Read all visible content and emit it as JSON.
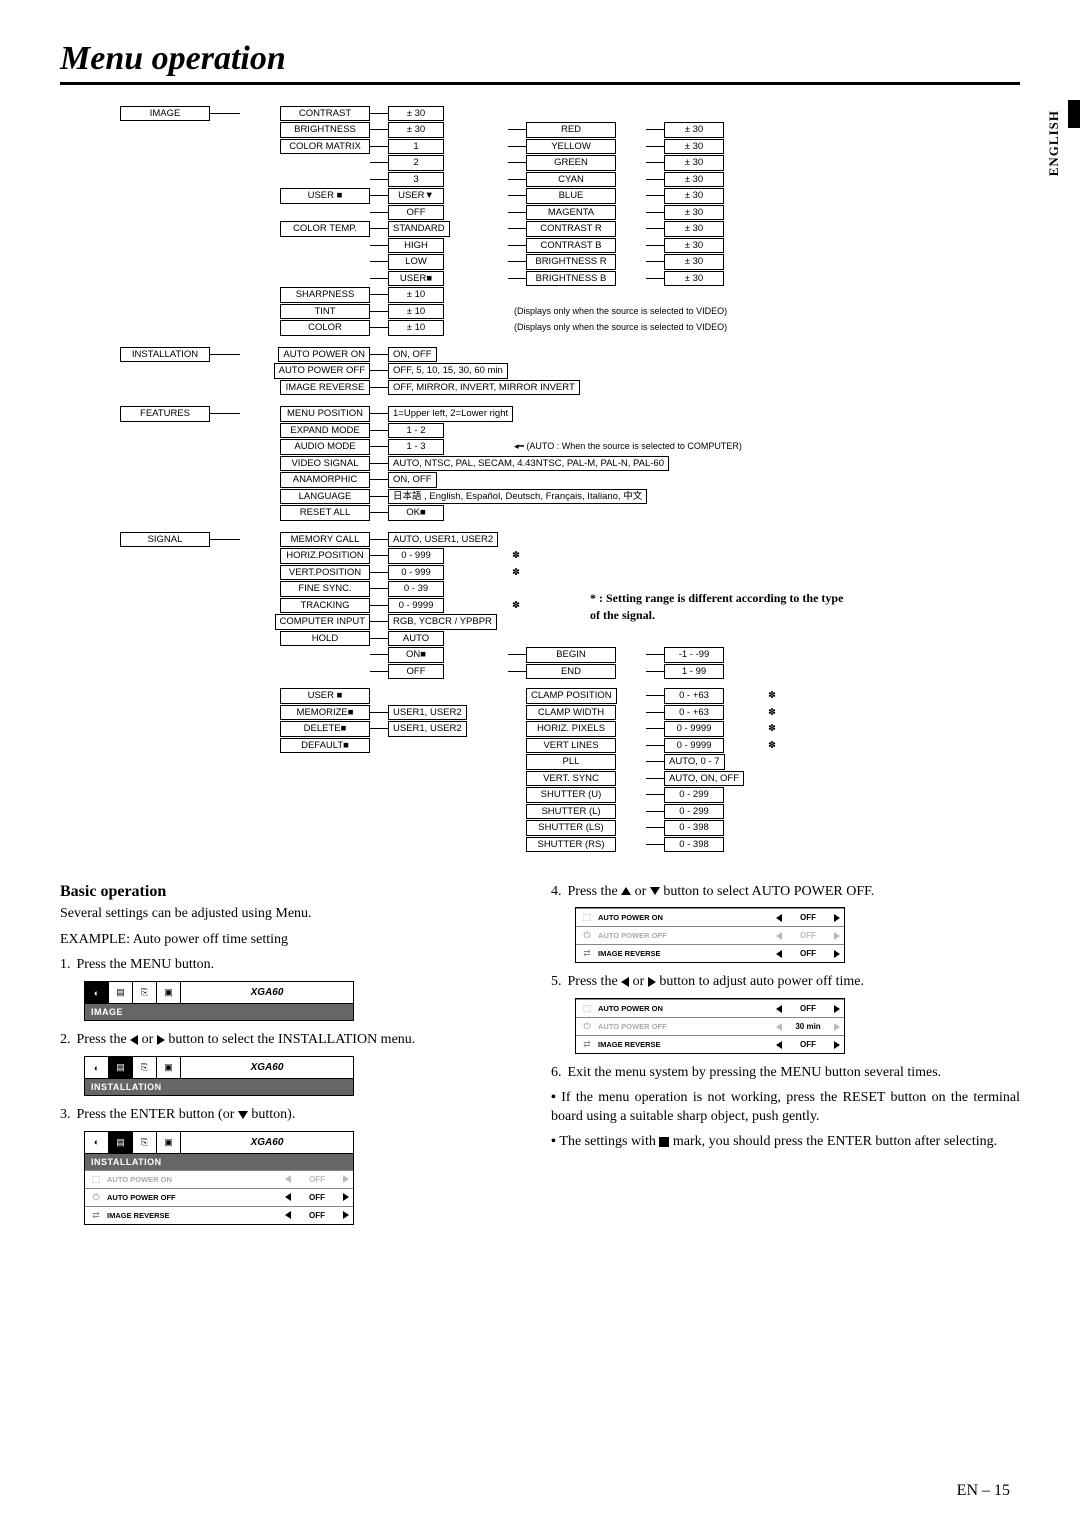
{
  "page": {
    "title": "Menu operation",
    "lang_tab": "ENGLISH",
    "page_number": "EN – 15"
  },
  "tree": {
    "sections": [
      {
        "name": "IMAGE",
        "items": [
          {
            "label": "CONTRAST",
            "val": "± 30"
          },
          {
            "label": "BRIGHTNESS",
            "val": "± 30",
            "sub": [
              {
                "label": "RED",
                "val": "± 30"
              }
            ]
          },
          {
            "label": "COLOR MATRIX",
            "val": "1",
            "sub": [
              {
                "label": "YELLOW",
                "val": "± 30"
              }
            ]
          },
          {
            "label": "",
            "val": "2",
            "sub": [
              {
                "label": "GREEN",
                "val": "± 30"
              }
            ]
          },
          {
            "label": "",
            "val": "3",
            "sub": [
              {
                "label": "CYAN",
                "val": "± 30"
              }
            ]
          },
          {
            "label": "USER ■",
            "val": "USER▼",
            "sub": [
              {
                "label": "BLUE",
                "val": "± 30"
              }
            ]
          },
          {
            "label": "",
            "val": "OFF",
            "sub": [
              {
                "label": "MAGENTA",
                "val": "± 30"
              }
            ]
          },
          {
            "label": "COLOR TEMP.",
            "val": "STANDARD",
            "sub": [
              {
                "label": "CONTRAST R",
                "val": "± 30"
              }
            ]
          },
          {
            "label": "",
            "val": "HIGH",
            "sub": [
              {
                "label": "CONTRAST B",
                "val": "± 30"
              }
            ]
          },
          {
            "label": "",
            "val": "LOW",
            "sub": [
              {
                "label": "BRIGHTNESS R",
                "val": "± 30"
              }
            ]
          },
          {
            "label": "",
            "val": "USER■",
            "sub": [
              {
                "label": "BRIGHTNESS B",
                "val": "± 30"
              }
            ]
          },
          {
            "label": "SHARPNESS",
            "val": "± 10"
          },
          {
            "label": "TINT",
            "val": "± 10",
            "note": "(Displays only when the source is selected to VIDEO)"
          },
          {
            "label": "COLOR",
            "val": "± 10",
            "note": "(Displays only when the source is selected to VIDEO)"
          }
        ]
      },
      {
        "name": "INSTALLATION",
        "items": [
          {
            "label": "AUTO POWER ON",
            "wide": "ON, OFF"
          },
          {
            "label": "AUTO POWER OFF",
            "wide": "OFF, 5, 10, 15, 30, 60 min"
          },
          {
            "label": "IMAGE REVERSE",
            "wide": "OFF, MIRROR, INVERT, MIRROR INVERT"
          }
        ]
      },
      {
        "name": "FEATURES",
        "items": [
          {
            "label": "MENU POSITION",
            "wide": "1=Upper left, 2=Lower right"
          },
          {
            "label": "EXPAND MODE",
            "val": "1 - 2"
          },
          {
            "label": "AUDIO MODE",
            "val": "1 - 3",
            "note2": "(AUTO : When the source is selected to COMPUTER)"
          },
          {
            "label": "VIDEO SIGNAL",
            "wide": "AUTO, NTSC, PAL, SECAM, 4.43NTSC, PAL-M, PAL-N, PAL-60"
          },
          {
            "label": "ANAMORPHIC",
            "wide": "ON, OFF"
          },
          {
            "label": "LANGUAGE",
            "wide": "日本語 , English, Español, Deutsch, Français, Italiano, 中文"
          },
          {
            "label": "RESET ALL",
            "val": "OK■"
          }
        ]
      },
      {
        "name": "SIGNAL",
        "items": [
          {
            "label": "MEMORY CALL",
            "wide": "AUTO, USER1, USER2"
          },
          {
            "label": "HORIZ.POSITION",
            "val": "0 - 999",
            "ast": true
          },
          {
            "label": "VERT.POSITION",
            "val": "0 - 999",
            "ast": true
          },
          {
            "label": "FINE SYNC.",
            "val": "0 - 39"
          },
          {
            "label": "TRACKING",
            "val": "0 - 9999",
            "ast": true
          },
          {
            "label": "COMPUTER INPUT",
            "wide": "RGB, YCBCR / YPBPR"
          },
          {
            "label": "HOLD",
            "val": "AUTO"
          },
          {
            "label": "",
            "val": "ON■",
            "sub": [
              {
                "label": "BEGIN",
                "val": "-1 - -99"
              }
            ]
          },
          {
            "label": "",
            "val": "OFF",
            "sub": [
              {
                "label": "END",
                "val": "1 - 99"
              }
            ]
          }
        ],
        "user_block": [
          {
            "label": "USER ■"
          },
          {
            "label": "MEMORIZE■",
            "val": "USER1, USER2"
          },
          {
            "label": "DELETE■",
            "val": "USER1, USER2"
          },
          {
            "label": "DEFAULT■"
          }
        ],
        "user_right": [
          {
            "label": "CLAMP POSITION",
            "val": "0 - +63",
            "ast": true
          },
          {
            "label": "CLAMP WIDTH",
            "val": "0 - +63",
            "ast": true
          },
          {
            "label": "HORIZ. PIXELS",
            "val": "0 - 9999",
            "ast": true
          },
          {
            "label": "VERT LINES",
            "val": "0 - 9999",
            "ast": true
          },
          {
            "label": "PLL",
            "val": "AUTO, 0 - 7"
          },
          {
            "label": "VERT. SYNC",
            "val": "AUTO, ON, OFF"
          },
          {
            "label": "SHUTTER (U)",
            "val": "0 - 299"
          },
          {
            "label": "SHUTTER (L)",
            "val": "0 - 299"
          },
          {
            "label": "SHUTTER (LS)",
            "val": "0 - 398"
          },
          {
            "label": "SHUTTER (RS)",
            "val": "0 - 398"
          }
        ]
      }
    ],
    "settings_note": "* : Setting range is different according to the type of the signal."
  },
  "basic": {
    "heading": "Basic operation",
    "intro": "Several settings can be adjusted using Menu.",
    "example": "EXAMPLE: Auto power off time setting",
    "steps_left": [
      "Press the MENU button.",
      "Press the ◀ or ▶ button to select the INSTALLATION menu.",
      "Press the ENTER button (or ▼ button)."
    ],
    "widget_label_xga": "XGA60",
    "widget_tab_image": "IMAGE",
    "widget_tab_install": "INSTALLATION",
    "rows": {
      "auto_on": "AUTO POWER ON",
      "auto_off": "AUTO POWER OFF",
      "image_rev": "IMAGE REVERSE",
      "off": "OFF",
      "30min": "30 min"
    },
    "steps_right": [
      "Press the ▲ or ▼ button to select AUTO POWER OFF.",
      "Press the ◀ or ▶ button to adjust auto power off time.",
      "Exit the menu system by pressing the MENU button several times."
    ],
    "bullets": [
      "If the menu operation is not working, press the RESET button on the terminal board using a suitable sharp object, push gently.",
      "The settings with ■ mark, you should press the ENTER button after selecting."
    ]
  }
}
